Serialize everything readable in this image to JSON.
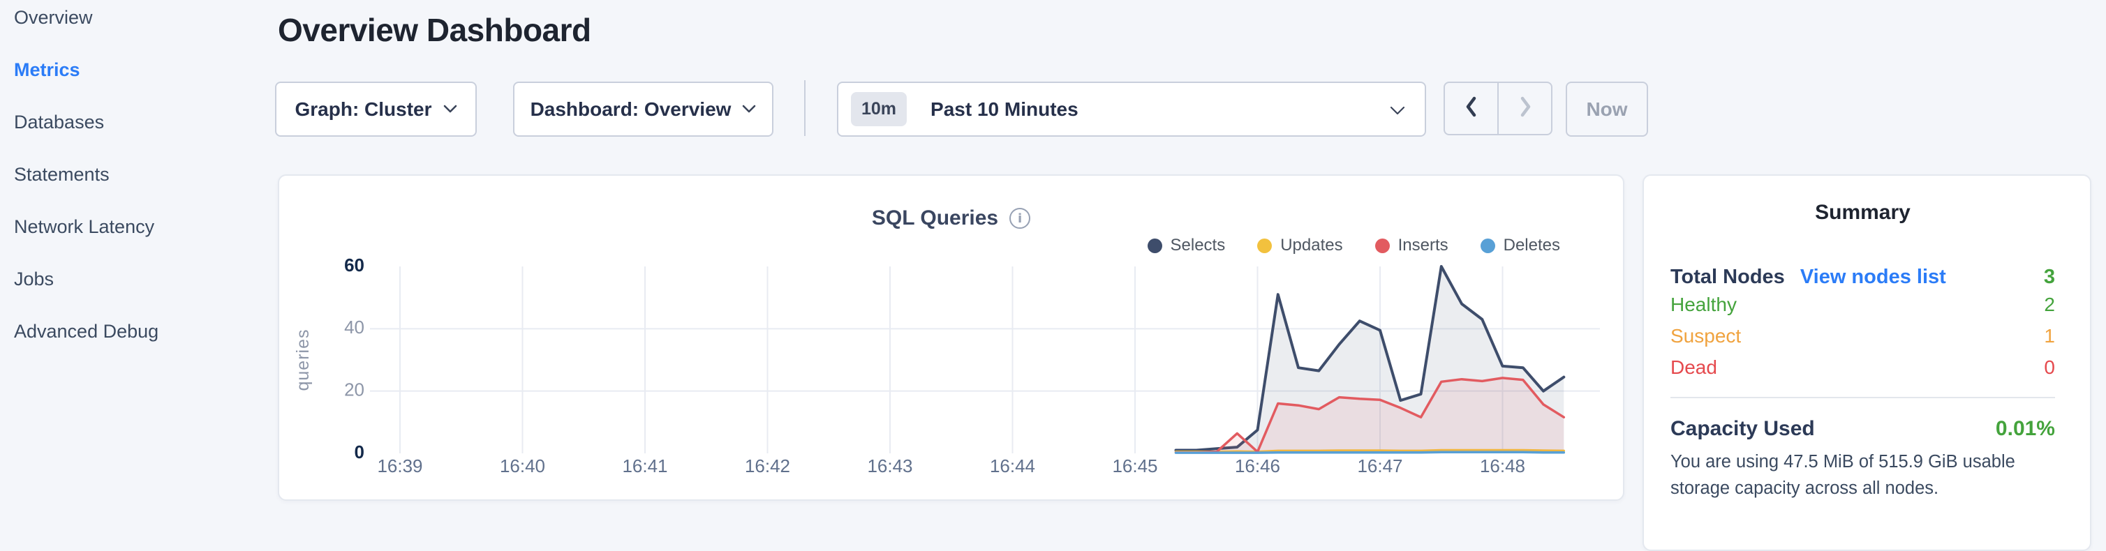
{
  "colors": {
    "page_bg": "#f4f6fa",
    "accent_blue": "#2b7cf7",
    "green": "#44a33c",
    "orange": "#f0a33f",
    "red": "#e5494d",
    "grid": "#e8ebf2",
    "axis_dark": "#13294a",
    "axis_light": "#8d96a8"
  },
  "sidebar": {
    "items": [
      {
        "label": "Overview",
        "active": false
      },
      {
        "label": "Metrics",
        "active": true
      },
      {
        "label": "Databases",
        "active": false
      },
      {
        "label": "Statements",
        "active": false
      },
      {
        "label": "Network Latency",
        "active": false
      },
      {
        "label": "Jobs",
        "active": false
      },
      {
        "label": "Advanced Debug",
        "active": false
      }
    ]
  },
  "header": {
    "title": "Overview Dashboard"
  },
  "toolbar": {
    "graph_dropdown": {
      "text": "Graph: Cluster"
    },
    "dashboard_dropdown": {
      "text": "Dashboard: Overview"
    },
    "time_picker": {
      "badge": "10m",
      "value": "Past 10 Minutes"
    },
    "prev_button": {
      "icon": "chevron-left",
      "enabled": true
    },
    "next_button": {
      "icon": "chevron-right",
      "enabled": false
    },
    "now_button": {
      "label": "Now",
      "enabled": false
    }
  },
  "chart_data": {
    "type": "area",
    "title": "SQL Queries",
    "ylabel": "queries",
    "ylim": [
      0,
      60
    ],
    "yticks": [
      0,
      20,
      40,
      60
    ],
    "x_ticks": [
      "16:39",
      "16:40",
      "16:41",
      "16:42",
      "16:43",
      "16:44",
      "16:45",
      "16:46",
      "16:47",
      "16:48"
    ],
    "grid": true,
    "legend_position": "top-right",
    "x": [
      "16:45:20",
      "16:45:30",
      "16:45:40",
      "16:45:50",
      "16:46:00",
      "16:46:10",
      "16:46:20",
      "16:46:30",
      "16:46:40",
      "16:46:50",
      "16:47:00",
      "16:47:10",
      "16:47:20",
      "16:47:30",
      "16:47:40",
      "16:47:50",
      "16:48:00",
      "16:48:10",
      "16:48:20",
      "16:48:30"
    ],
    "series": [
      {
        "name": "Selects",
        "color": "#3e4d6b",
        "values": [
          1,
          1,
          1.5,
          2,
          7.5,
          51,
          27.5,
          26.5,
          35,
          42.5,
          39.5,
          17,
          19,
          60,
          48,
          43,
          28,
          27.5,
          20,
          24.5
        ]
      },
      {
        "name": "Updates",
        "color": "#f2c13e",
        "values": [
          0.5,
          0.5,
          0.5,
          0.6,
          0.5,
          0.8,
          0.8,
          0.8,
          0.9,
          0.9,
          0.9,
          0.8,
          0.8,
          1,
          1,
          1,
          1,
          1,
          0.9,
          0.8
        ]
      },
      {
        "name": "Inserts",
        "color": "#e25b60",
        "values": [
          0.3,
          0.3,
          0.5,
          6.4,
          0.5,
          16,
          15.4,
          14.2,
          18,
          17.5,
          17.2,
          14.6,
          11.6,
          23,
          23.8,
          23.2,
          24.2,
          23.6,
          15.7,
          11.6
        ]
      },
      {
        "name": "Deletes",
        "color": "#58a0d6",
        "values": [
          0.2,
          0.2,
          0.2,
          0.2,
          0.2,
          0.3,
          0.3,
          0.3,
          0.3,
          0.3,
          0.3,
          0.3,
          0.3,
          0.4,
          0.4,
          0.4,
          0.4,
          0.4,
          0.3,
          0.3
        ]
      }
    ]
  },
  "summary": {
    "title": "Summary",
    "total_nodes_label": "Total Nodes",
    "view_nodes_link": "View nodes list",
    "total_nodes_value": "3",
    "rows": [
      {
        "label": "Healthy",
        "value": "2",
        "color": "#44a33c"
      },
      {
        "label": "Suspect",
        "value": "1",
        "color": "#f0a33f"
      },
      {
        "label": "Dead",
        "value": "0",
        "color": "#e5494d"
      }
    ],
    "capacity_label": "Capacity Used",
    "capacity_value": "0.01%",
    "capacity_description": "You are using 47.5 MiB of 515.9 GiB usable storage capacity across all nodes."
  }
}
